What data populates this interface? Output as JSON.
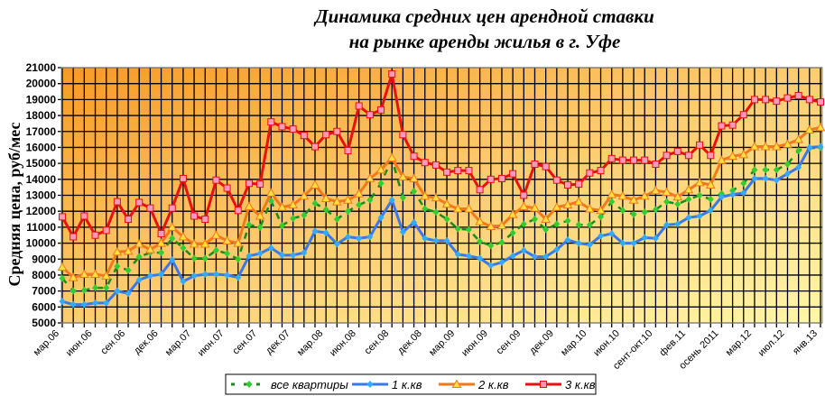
{
  "chart_data": {
    "type": "line",
    "title": [
      "Динамика средних цен арендной ставки",
      "на рынке аренды жилья в г. Уфе"
    ],
    "ylabel": "Средняя цена, руб/мес",
    "xlabel": "",
    "ylim": [
      5000,
      21000
    ],
    "ytick_step": 1000,
    "grid": true,
    "legend_position": "bottom",
    "x_labels": [
      "мар.06",
      "",
      "",
      "июн.06",
      "",
      "",
      "сен.06",
      "",
      "",
      "дек.06",
      "",
      "",
      "мар.07",
      "",
      "",
      "июн.07",
      "",
      "",
      "сен.07",
      "",
      "",
      "дек.07",
      "",
      "",
      "мар.08",
      "",
      "",
      "июн.08",
      "",
      "",
      "сен.08",
      "",
      "",
      "дек.08",
      "",
      "",
      "мар.09",
      "",
      "",
      "июн.09",
      "",
      "",
      "сен.09",
      "",
      "",
      "дек.09",
      "",
      "",
      "мар.10",
      "",
      "",
      "июн.10",
      "",
      "",
      "сент-окт.10",
      "",
      "",
      "фев.11",
      "",
      "",
      "осень 2011",
      "",
      "",
      "мар.12",
      "",
      "",
      "июл.12",
      "",
      "",
      "янв.13"
    ],
    "series": [
      {
        "name": "все квартиры",
        "color": "#1a8a1a",
        "marker_color": "#33cc33",
        "marker": "diamond",
        "dashed": true,
        "values": [
          7800,
          7000,
          7050,
          7200,
          7200,
          8550,
          8300,
          9150,
          9400,
          9400,
          10300,
          9700,
          9050,
          9050,
          9550,
          9350,
          9000,
          11150,
          11000,
          12650,
          11100,
          11550,
          11750,
          12500,
          12100,
          11500,
          12000,
          12400,
          12700,
          13750,
          15300,
          12850,
          13250,
          12150,
          11950,
          11500,
          10900,
          10850,
          10100,
          9850,
          10050,
          10650,
          11200,
          11500,
          10850,
          11200,
          11400,
          11150,
          11150,
          11650,
          12600,
          12050,
          11800,
          11950,
          12100,
          12600,
          12450,
          12750,
          13000,
          12750,
          13100,
          13300,
          13750,
          14600,
          14600,
          14600,
          14950,
          15800,
          15950,
          16000
        ]
      },
      {
        "name": "1 к.кв",
        "color": "#3a78e8",
        "marker_color": "#33aaff",
        "marker": "diamond",
        "values": [
          6350,
          6150,
          6150,
          6250,
          6250,
          7000,
          6850,
          7700,
          7950,
          8050,
          8950,
          7600,
          7950,
          8050,
          8050,
          8000,
          7850,
          9200,
          9350,
          9700,
          9250,
          9250,
          9400,
          10750,
          10650,
          9950,
          10400,
          10300,
          10400,
          11600,
          12700,
          10700,
          11300,
          10300,
          10150,
          10150,
          9300,
          9200,
          9050,
          8600,
          8800,
          9200,
          9550,
          9150,
          9150,
          9600,
          10200,
          10000,
          9900,
          10450,
          10600,
          10000,
          10000,
          10350,
          10300,
          11150,
          11200,
          11600,
          11700,
          12050,
          12900,
          13050,
          13150,
          14050,
          14050,
          13950,
          14350,
          14750,
          16000,
          16050
        ]
      },
      {
        "name": "2 к.кв",
        "color": "#f07a1a",
        "marker_color": "#ffe040",
        "marker": "triangle",
        "values": [
          8500,
          7850,
          8050,
          8050,
          7950,
          9450,
          9500,
          9950,
          9600,
          10000,
          11000,
          10400,
          9950,
          9950,
          10500,
          10150,
          10000,
          12300,
          11700,
          13150,
          12250,
          12400,
          12950,
          13650,
          12800,
          12600,
          12700,
          13100,
          14050,
          14600,
          15350,
          14150,
          14050,
          12950,
          12850,
          12450,
          12150,
          12150,
          11350,
          11050,
          11100,
          11800,
          12300,
          12200,
          11500,
          12250,
          12400,
          12600,
          12150,
          12050,
          13050,
          12950,
          12700,
          12950,
          13300,
          13200,
          12900,
          13350,
          13800,
          13650,
          15200,
          15450,
          15550,
          16050,
          16050,
          16050,
          16200,
          16500,
          17100,
          17250
        ]
      },
      {
        "name": "3 к.кв",
        "color": "#e81010",
        "marker_color": "#ff99bb",
        "marker": "square",
        "values": [
          11650,
          10400,
          11700,
          10500,
          10800,
          12600,
          11500,
          12550,
          12200,
          10600,
          12200,
          14050,
          11700,
          11500,
          13950,
          13450,
          12050,
          13750,
          13700,
          17600,
          17300,
          17150,
          16750,
          16050,
          16800,
          17000,
          15800,
          18600,
          18050,
          18350,
          20600,
          16800,
          15450,
          15050,
          14900,
          14450,
          14550,
          14550,
          13350,
          14000,
          14050,
          14350,
          13000,
          14950,
          14800,
          13950,
          13650,
          13700,
          14400,
          14550,
          15300,
          15200,
          15200,
          15200,
          14950,
          15500,
          15750,
          15500,
          16150,
          15500,
          17350,
          17400,
          18050,
          19000,
          19000,
          18900,
          19100,
          19250,
          19000,
          18850
        ]
      }
    ]
  }
}
